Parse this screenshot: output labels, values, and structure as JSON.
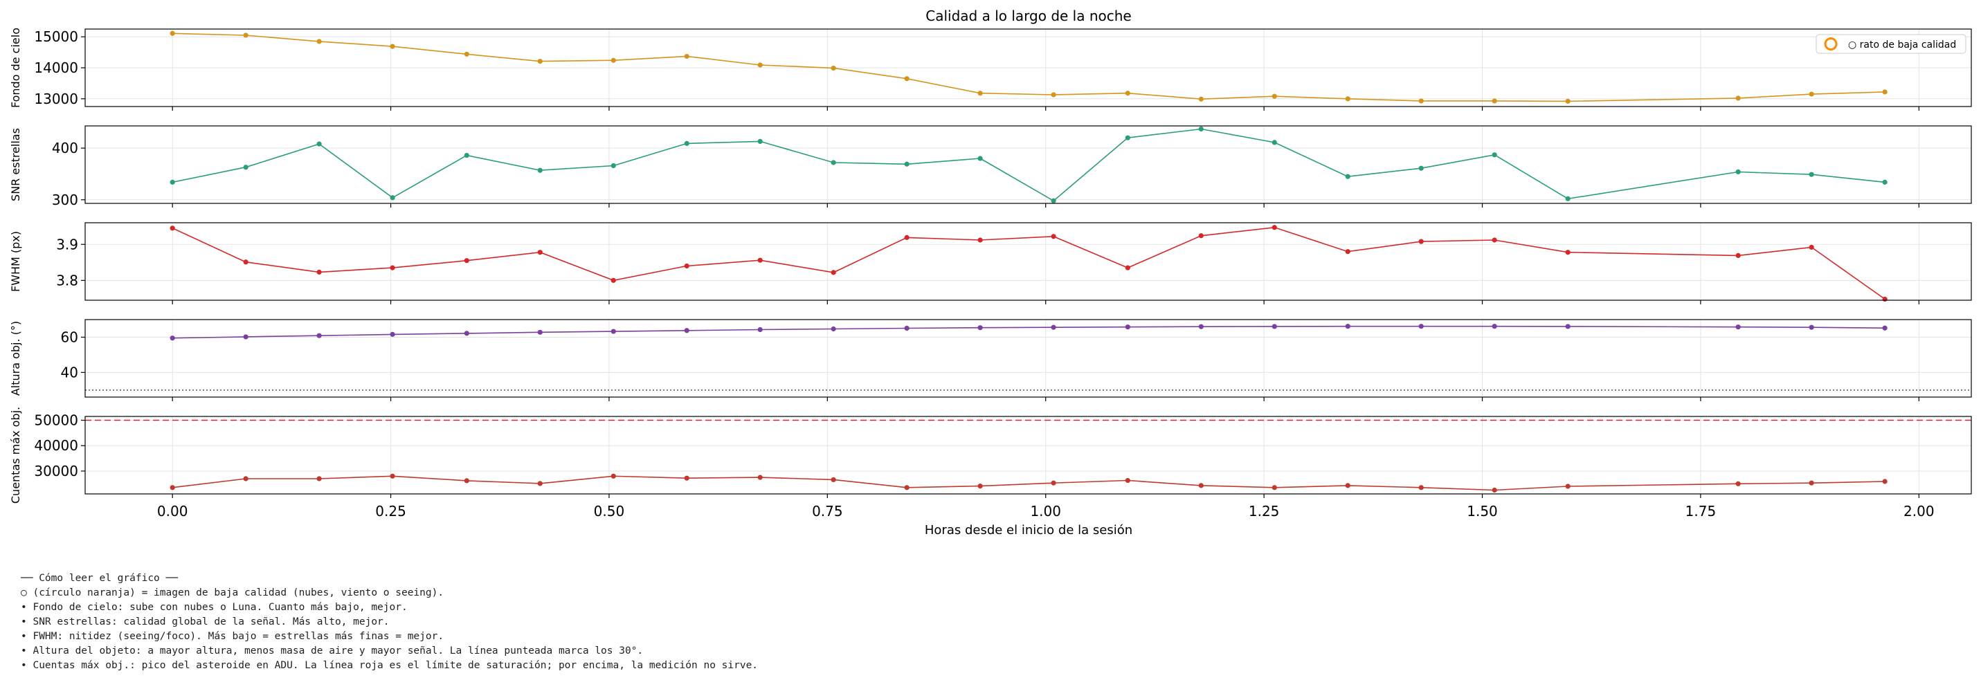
{
  "chart_data": {
    "type": "line",
    "title": "Calidad a lo largo de la noche",
    "xlabel": "Horas desde el inicio de la sesión",
    "xlim": [
      -0.1,
      2.06
    ],
    "xticks": [
      0.0,
      0.25,
      0.5,
      0.75,
      1.0,
      1.25,
      1.5,
      1.75,
      2.0
    ],
    "xtick_labels": [
      "0.00",
      "0.25",
      "0.50",
      "0.75",
      "1.00",
      "1.25",
      "1.50",
      "1.75",
      "2.00"
    ],
    "x": [
      0.0,
      0.084,
      0.168,
      0.252,
      0.337,
      0.421,
      0.505,
      0.589,
      0.673,
      0.757,
      0.841,
      0.925,
      1.009,
      1.094,
      1.178,
      1.262,
      1.346,
      1.43,
      1.514,
      1.598,
      1.793,
      1.877,
      1.961
    ],
    "grid": true,
    "legend": {
      "label": "○ rato de baja calidad",
      "placement": "top-right",
      "marker_color": "#ff8c00"
    },
    "panels": [
      {
        "ylabel": "Fondo de cielo",
        "ylim": [
          12750,
          15250
        ],
        "yticks": [
          13000,
          14000,
          15000
        ],
        "ytick_labels": [
          "13000",
          "14000",
          "15000"
        ],
        "color": "#d4951a",
        "values": [
          15110,
          15050,
          14850,
          14690,
          14440,
          14210,
          14240,
          14370,
          14090,
          13990,
          13650,
          13180,
          13130,
          13180,
          12990,
          13080,
          13000,
          12930,
          12930,
          12920,
          13020,
          13150,
          13220
        ]
      },
      {
        "ylabel": "SNR estrellas",
        "ylim": [
          293,
          443
        ],
        "yticks": [
          300,
          400
        ],
        "ytick_labels": [
          "300",
          "400"
        ],
        "color": "#2a9d7c",
        "values": [
          334,
          363,
          408,
          304,
          386,
          357,
          366,
          409,
          413,
          372,
          369,
          380,
          298,
          420,
          437,
          411,
          345,
          361,
          387,
          302,
          354,
          349,
          334
        ]
      },
      {
        "ylabel": "FWHM (px)",
        "ylim": [
          3.745,
          3.96
        ],
        "yticks": [
          3.8,
          3.9
        ],
        "ytick_labels": [
          "3.8",
          "3.9"
        ],
        "color": "#d62728",
        "values": [
          3.945,
          3.851,
          3.823,
          3.835,
          3.855,
          3.878,
          3.8,
          3.84,
          3.856,
          3.822,
          3.919,
          3.912,
          3.922,
          3.835,
          3.924,
          3.947,
          3.88,
          3.908,
          3.912,
          3.878,
          3.869,
          3.892,
          3.748
        ]
      },
      {
        "ylabel": "Altura obj. (°)",
        "ylim": [
          26,
          70
        ],
        "yticks": [
          40,
          60
        ],
        "ytick_labels": [
          "40",
          "60"
        ],
        "color": "#7b3fa0",
        "values": [
          59.5,
          60.2,
          60.9,
          61.6,
          62.2,
          62.8,
          63.3,
          63.8,
          64.3,
          64.7,
          65.1,
          65.4,
          65.6,
          65.8,
          66.0,
          66.1,
          66.2,
          66.2,
          66.2,
          66.1,
          65.8,
          65.6,
          65.2
        ],
        "reference_line": {
          "value": 30,
          "style": "dotted",
          "color": "#555555"
        }
      },
      {
        "ylabel": "Cuentas máx obj.",
        "ylim": [
          21000,
          51500
        ],
        "yticks": [
          30000,
          40000,
          50000
        ],
        "ytick_labels": [
          "30000",
          "40000",
          "50000"
        ],
        "color": "#c0392b",
        "values": [
          23500,
          27000,
          27000,
          28000,
          26200,
          25100,
          28000,
          27200,
          27500,
          26600,
          23500,
          24100,
          25300,
          26300,
          24300,
          23500,
          24300,
          23500,
          22500,
          24000,
          25000,
          25300,
          25900
        ],
        "reference_line": {
          "value": 50000,
          "style": "dashed",
          "color": "#d62728"
        }
      }
    ]
  },
  "notes": {
    "heading": "── Cómo leer el gráfico ──",
    "lines": [
      "○ (círculo naranja) = imagen de baja calidad (nubes, viento o seeing).",
      "• Fondo de cielo: sube con nubes o Luna. Cuanto más bajo, mejor.",
      "• SNR estrellas: calidad global de la señal. Más alto, mejor.",
      "• FWHM: nitidez (seeing/foco). Más bajo = estrellas más finas = mejor.",
      "• Altura del objeto: a mayor altura, menos masa de aire y mayor señal. La línea punteada marca los 30°.",
      "• Cuentas máx obj.: pico del asteroide en ADU. La línea roja es el límite de saturación; por encima, la medición no sirve."
    ]
  }
}
